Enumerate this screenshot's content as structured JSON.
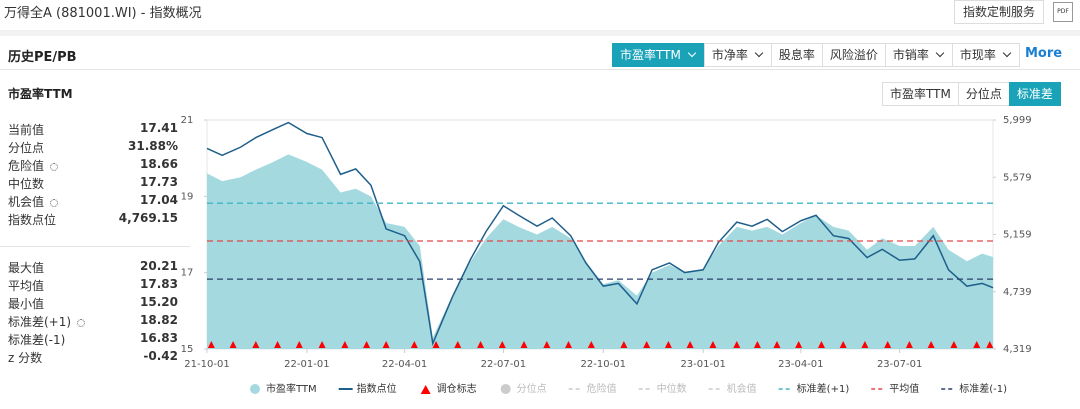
{
  "header": {
    "title": "万得全A (881001.WI) - 指数概况",
    "button": "指数定制服务",
    "icon": "PDF"
  },
  "panel": {
    "title": "历史PE/PB",
    "tabs": [
      {
        "label": "市盈率TTM",
        "active": true,
        "dropdown": true
      },
      {
        "label": "市净率",
        "active": false,
        "dropdown": true
      },
      {
        "label": "股息率",
        "active": false,
        "dropdown": false
      },
      {
        "label": "风险溢价",
        "active": false,
        "dropdown": false
      },
      {
        "label": "市销率",
        "active": false,
        "dropdown": true
      },
      {
        "label": "市现率",
        "active": false,
        "dropdown": true
      }
    ],
    "more": "More"
  },
  "sub": {
    "title": "市盈率TTM",
    "tabs": [
      {
        "label": "市盈率TTM",
        "active": false
      },
      {
        "label": "分位点",
        "active": false
      },
      {
        "label": "标准差",
        "active": true
      }
    ]
  },
  "stats": [
    [
      {
        "label": "当前值",
        "value": "17.41",
        "setting": false
      },
      {
        "label": "分位点",
        "value": "31.88%",
        "setting": false
      },
      {
        "label": "危险值",
        "value": "18.66",
        "setting": true
      },
      {
        "label": "中位数",
        "value": "17.73",
        "setting": false
      },
      {
        "label": "机会值",
        "value": "17.04",
        "setting": true
      },
      {
        "label": "指数点位",
        "value": "4,769.15",
        "setting": false
      }
    ],
    [
      {
        "label": "最大值",
        "value": "20.21",
        "setting": false
      },
      {
        "label": "平均值",
        "value": "17.83",
        "setting": false
      },
      {
        "label": "最小值",
        "value": "15.20",
        "setting": false
      },
      {
        "label": "标准差(+1)",
        "value": "18.82",
        "setting": true
      },
      {
        "label": "标准差(-1)",
        "value": "16.83",
        "setting": false
      },
      {
        "label": "z 分数",
        "value": "-0.42",
        "setting": false
      }
    ]
  ],
  "chart_data": {
    "type": "area-line",
    "x": [
      "21-10-01",
      "21-10-15",
      "21-11-01",
      "21-11-15",
      "21-12-01",
      "21-12-15",
      "22-01-01",
      "22-01-15",
      "22-02-01",
      "22-02-15",
      "22-03-01",
      "22-03-15",
      "22-04-01",
      "22-04-15",
      "22-04-27",
      "22-05-15",
      "22-06-01",
      "22-06-15",
      "22-07-01",
      "22-07-15",
      "22-08-01",
      "22-08-15",
      "22-09-01",
      "22-09-15",
      "22-10-01",
      "22-10-15",
      "22-11-01",
      "22-11-15",
      "22-12-01",
      "22-12-15",
      "23-01-01",
      "23-01-15",
      "23-02-01",
      "23-02-15",
      "23-03-01",
      "23-03-15",
      "23-04-01",
      "23-04-15",
      "23-05-01",
      "23-05-15",
      "23-06-01",
      "23-06-15",
      "23-07-01",
      "23-07-15",
      "23-08-01",
      "23-08-15",
      "23-09-01",
      "23-09-15",
      "23-09-25"
    ],
    "series": [
      {
        "name": "市盈率TTM",
        "kind": "area",
        "color": "#a3d9df",
        "values": [
          19.6,
          19.4,
          19.5,
          19.7,
          19.9,
          20.1,
          19.9,
          19.7,
          19.1,
          19.2,
          19.0,
          18.3,
          18.2,
          17.7,
          15.3,
          16.4,
          17.3,
          17.9,
          18.4,
          18.2,
          18.0,
          18.2,
          17.9,
          17.3,
          16.7,
          16.8,
          16.4,
          17.0,
          17.2,
          17.0,
          17.1,
          17.7,
          18.2,
          18.1,
          18.2,
          18.0,
          18.3,
          18.5,
          18.2,
          18.1,
          17.6,
          17.9,
          17.7,
          17.7,
          18.2,
          17.6,
          17.3,
          17.5,
          17.41
        ]
      },
      {
        "name": "指数点位",
        "kind": "line",
        "axis": "y2",
        "color": "#1f5f8b",
        "values": [
          5790,
          5740,
          5800,
          5870,
          5930,
          5980,
          5900,
          5870,
          5600,
          5640,
          5520,
          5200,
          5150,
          4960,
          4360,
          4700,
          4980,
          5180,
          5370,
          5300,
          5220,
          5280,
          5150,
          4950,
          4780,
          4800,
          4650,
          4900,
          4950,
          4880,
          4900,
          5100,
          5250,
          5220,
          5270,
          5180,
          5260,
          5300,
          5150,
          5130,
          4990,
          5050,
          4970,
          4980,
          5150,
          4900,
          4780,
          4800,
          4769.15
        ]
      },
      {
        "name": "调仓标志",
        "kind": "marker",
        "color": "#ff0000",
        "x": [
          "21-10-05",
          "21-10-25",
          "21-11-15",
          "21-12-05",
          "21-12-25",
          "22-01-15",
          "22-02-05",
          "22-02-25",
          "22-03-15",
          "22-04-10",
          "22-04-30",
          "22-05-20",
          "22-06-10",
          "22-06-30",
          "22-07-20",
          "22-08-10",
          "22-08-30",
          "22-09-20",
          "22-10-20",
          "22-11-10",
          "22-11-30",
          "22-12-20",
          "23-01-10",
          "23-02-01",
          "23-02-20",
          "23-03-10",
          "23-03-30",
          "23-04-20",
          "23-05-10",
          "23-05-30",
          "23-06-20",
          "23-07-10",
          "23-07-30",
          "23-08-20",
          "23-09-10",
          "23-09-22"
        ]
      }
    ],
    "reference_lines": [
      {
        "name": "分位点",
        "visible": false,
        "color": "#cccccc",
        "icon": "dot"
      },
      {
        "name": "危险值",
        "visible": false,
        "color": "#cccccc",
        "value": 18.66
      },
      {
        "name": "中位数",
        "visible": false,
        "color": "#cccccc",
        "value": 17.73
      },
      {
        "name": "机会值",
        "visible": false,
        "color": "#cccccc",
        "value": 17.04
      },
      {
        "name": "标准差(+1)",
        "visible": true,
        "color": "#3fb8c4",
        "value": 18.82
      },
      {
        "name": "平均值",
        "visible": true,
        "color": "#e04848",
        "value": 17.83
      },
      {
        "name": "标准差(-1)",
        "visible": true,
        "color": "#2b3f6b",
        "value": 16.83
      }
    ],
    "xlim": [
      "21-10-01",
      "23-09-25"
    ],
    "xticks": [
      "21-10-01",
      "22-01-01",
      "22-04-01",
      "22-07-01",
      "22-10-01",
      "23-01-01",
      "23-04-01",
      "23-07-01"
    ],
    "ylim": [
      15,
      21
    ],
    "yticks": [
      15,
      17,
      19,
      21
    ],
    "y2lim": [
      4319,
      5999
    ],
    "y2ticks": [
      {
        "value": 4319,
        "label": "4,319"
      },
      {
        "value": 4739,
        "label": "4,739"
      },
      {
        "value": 5159,
        "label": "5,159"
      },
      {
        "value": 5579,
        "label": "5,579"
      },
      {
        "value": 5999,
        "label": "5,999"
      }
    ]
  }
}
